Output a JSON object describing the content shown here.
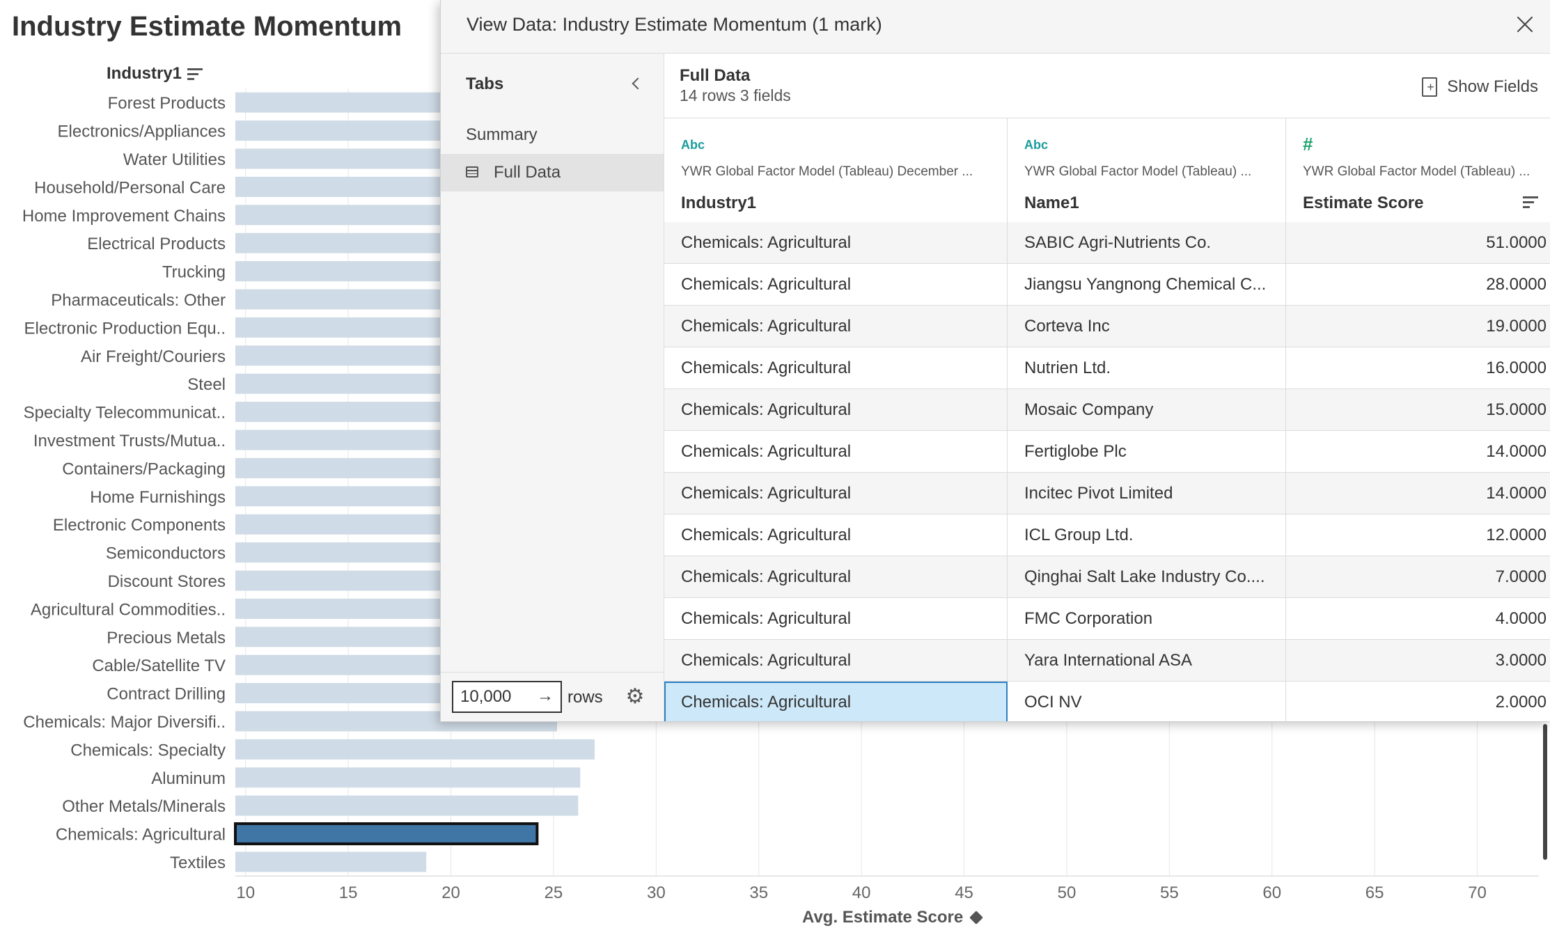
{
  "chart": {
    "title": "Industry Estimate Momentum",
    "row_header": "Industry1",
    "x_title": "Avg. Estimate Score"
  },
  "chart_data": {
    "type": "bar",
    "orientation": "horizontal",
    "categories": [
      "Forest Products",
      "Electronics/Appliances",
      "Water Utilities",
      "Household/Personal Care",
      "Home Improvement Chains",
      "Electrical Products",
      "Trucking",
      "Pharmaceuticals: Other",
      "Electronic Production Equ..",
      "Air Freight/Couriers",
      "Steel",
      "Specialty Telecommunicat..",
      "Investment Trusts/Mutua..",
      "Containers/Packaging",
      "Home Furnishings",
      "Electronic Components",
      "Semiconductors",
      "Discount Stores",
      "Agricultural Commodities..",
      "Precious Metals",
      "Cable/Satellite TV",
      "Contract Drilling",
      "Chemicals: Major Diversifi..",
      "Chemicals: Specialty",
      "Aluminum",
      "Other Metals/Minerals",
      "Chemicals: Agricultural",
      "Textiles"
    ],
    "values": [
      null,
      null,
      null,
      null,
      null,
      null,
      null,
      null,
      null,
      null,
      null,
      null,
      null,
      null,
      null,
      null,
      null,
      null,
      null,
      null,
      null,
      null,
      null,
      27.0,
      26.3,
      26.2,
      24.2,
      18.8
    ],
    "highlighted": "Chemicals: Agricultural",
    "xlabel": "Avg. Estimate Score",
    "xticks": [
      10,
      15,
      20,
      25,
      30,
      35,
      40,
      45,
      50,
      55,
      60,
      65,
      70
    ],
    "xlim": [
      9.5,
      73
    ],
    "grid": true,
    "colors": {
      "bar": "#cfdbe6",
      "highlight": "#3f76a6",
      "gridline": "#e6e6e6"
    }
  },
  "dialog": {
    "title": "View Data: Industry Estimate Momentum (1 mark)",
    "tabs_title": "Tabs",
    "tabs": [
      {
        "label": "Summary"
      },
      {
        "label": "Full Data"
      }
    ],
    "rows_value": "10,000",
    "rows_go": "→",
    "rows_label": "rows",
    "data_title": "Full Data",
    "data_subtitle": "14 rows 3 fields",
    "show_fields": "Show Fields",
    "columns": [
      {
        "type": "Abc",
        "source": "YWR Global Factor Model (Tableau) December ...",
        "name": "Industry1"
      },
      {
        "type": "Abc",
        "source": "YWR Global Factor Model (Tableau) ...",
        "name": "Name1"
      },
      {
        "type": "#",
        "source": "YWR Global Factor Model (Tableau) ...",
        "name": "Estimate Score"
      }
    ],
    "rows": [
      {
        "industry": "Chemicals: Agricultural",
        "name": "SABIC Agri-Nutrients Co.",
        "score": "51.0000"
      },
      {
        "industry": "Chemicals: Agricultural",
        "name": "Jiangsu Yangnong Chemical C...",
        "score": "28.0000"
      },
      {
        "industry": "Chemicals: Agricultural",
        "name": "Corteva Inc",
        "score": "19.0000"
      },
      {
        "industry": "Chemicals: Agricultural",
        "name": "Nutrien Ltd.",
        "score": "16.0000"
      },
      {
        "industry": "Chemicals: Agricultural",
        "name": "Mosaic Company",
        "score": "15.0000"
      },
      {
        "industry": "Chemicals: Agricultural",
        "name": "Fertiglobe Plc",
        "score": "14.0000"
      },
      {
        "industry": "Chemicals: Agricultural",
        "name": "Incitec Pivot Limited",
        "score": "14.0000"
      },
      {
        "industry": "Chemicals: Agricultural",
        "name": "ICL Group Ltd.",
        "score": "12.0000"
      },
      {
        "industry": "Chemicals: Agricultural",
        "name": "Qinghai Salt Lake Industry Co....",
        "score": "7.0000"
      },
      {
        "industry": "Chemicals: Agricultural",
        "name": "FMC Corporation",
        "score": "4.0000"
      },
      {
        "industry": "Chemicals: Agricultural",
        "name": "Yara International ASA",
        "score": "3.0000"
      },
      {
        "industry": "Chemicals: Agricultural",
        "name": "OCI NV",
        "score": "2.0000"
      }
    ]
  }
}
